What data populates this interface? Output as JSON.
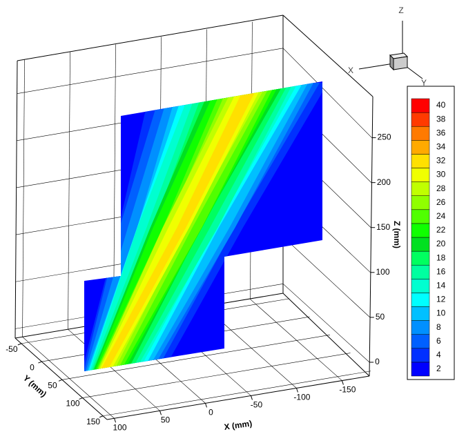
{
  "chart_data": {
    "type": "contour3d",
    "xlabel": "X (mm)",
    "ylabel": "Y (mm)",
    "zlabel": "Z (mm)",
    "xlim": [
      108,
      -180
    ],
    "xticks": [
      100,
      50,
      0,
      -50,
      -100,
      -150
    ],
    "ylim": [
      -65,
      160
    ],
    "yticks": [
      -50,
      0,
      50,
      100,
      150
    ],
    "zlim": [
      -10,
      285
    ],
    "zticks": [
      0,
      50,
      100,
      150,
      200,
      250
    ],
    "grid": true,
    "levels": [
      2,
      4,
      6,
      8,
      10,
      12,
      14,
      16,
      18,
      20,
      22,
      24,
      26,
      28,
      30,
      32,
      34,
      36,
      38,
      40
    ],
    "colors": [
      "#0000ff",
      "#0030ff",
      "#0060ff",
      "#0090ff",
      "#00c0ff",
      "#00ffff",
      "#00ffd0",
      "#00ffa0",
      "#00ff60",
      "#00e020",
      "#10ff00",
      "#50ff00",
      "#90ff00",
      "#c0ff00",
      "#f0ff00",
      "#ffe000",
      "#ffaa00",
      "#ff7a00",
      "#ff3a00",
      "#ff0000"
    ],
    "triad_labels": [
      "X",
      "Y",
      "Z"
    ]
  }
}
